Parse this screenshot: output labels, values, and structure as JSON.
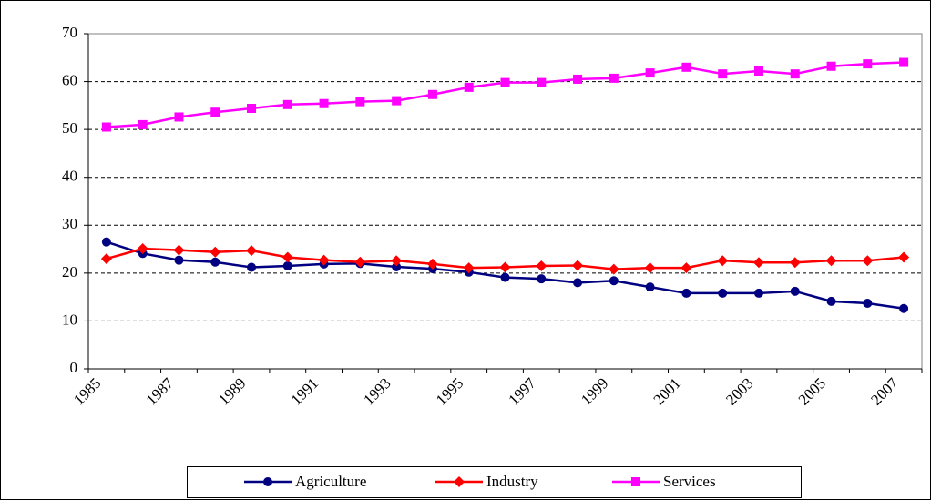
{
  "chart_data": {
    "type": "line",
    "categories": [
      "1985",
      null,
      "1987",
      null,
      "1989",
      null,
      "1991",
      null,
      "1993",
      null,
      "1995",
      null,
      "1997",
      null,
      "1999",
      null,
      "2001",
      null,
      "2003",
      null,
      "2005",
      null,
      "2007"
    ],
    "series": [
      {
        "name": "Agriculture",
        "color": "#000080",
        "marker": "circle",
        "values": [
          26.5,
          24.1,
          22.7,
          22.3,
          21.2,
          21.5,
          21.9,
          22.0,
          21.3,
          20.9,
          20.2,
          19.1,
          18.8,
          18.0,
          18.4,
          17.1,
          15.8,
          15.8,
          15.8,
          16.2,
          14.1,
          13.7,
          12.6
        ]
      },
      {
        "name": "Industry",
        "color": "#ff0000",
        "marker": "diamond",
        "values": [
          23.0,
          25.1,
          24.8,
          24.4,
          24.7,
          23.3,
          22.7,
          22.3,
          22.6,
          21.9,
          21.1,
          21.2,
          21.5,
          21.6,
          20.8,
          21.1,
          21.1,
          22.6,
          22.2,
          22.2,
          22.6,
          22.6,
          23.3
        ]
      },
      {
        "name": "Services",
        "color": "#ff00ff",
        "marker": "square",
        "values": [
          50.5,
          51.0,
          52.6,
          53.6,
          54.4,
          55.2,
          55.4,
          55.8,
          56.0,
          57.3,
          58.8,
          59.8,
          59.8,
          60.5,
          60.7,
          61.8,
          63.0,
          61.6,
          62.2,
          61.6,
          63.2,
          63.7,
          64.0
        ]
      }
    ],
    "ylim": [
      0,
      70
    ],
    "yticks": [
      0,
      10,
      20,
      30,
      40,
      50,
      60,
      70
    ],
    "grid": true,
    "legend": "bottom"
  }
}
